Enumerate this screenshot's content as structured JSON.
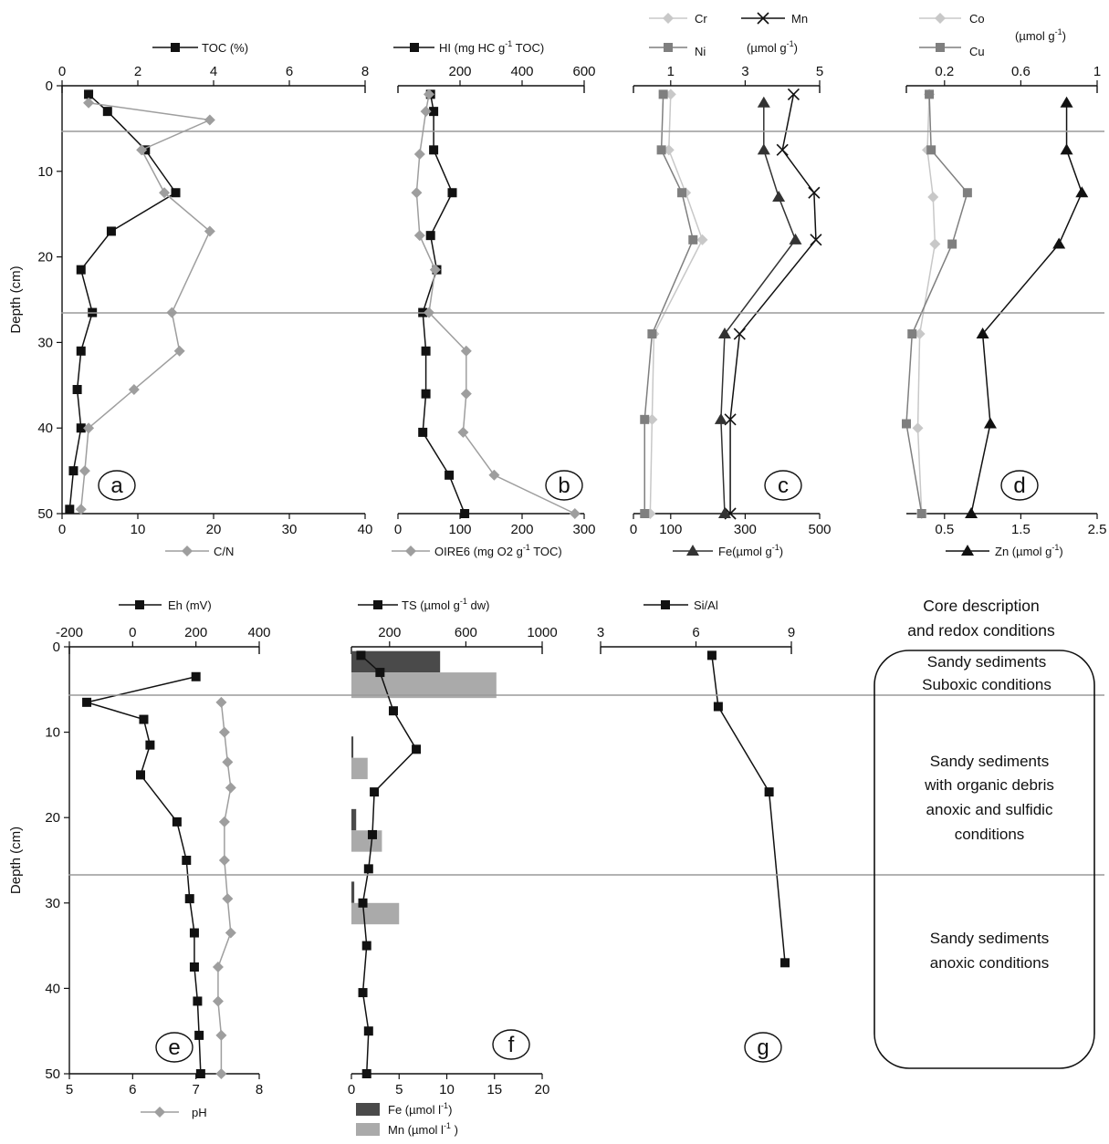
{
  "chart_data": [
    {
      "id": "a",
      "type": "line",
      "panel_label": "a",
      "ylabel": "Depth (cm)",
      "ylim": [
        0,
        50
      ],
      "yticks": [
        0,
        10,
        20,
        30,
        40,
        50
      ],
      "top_axis": {
        "label": "TOC (%)",
        "lim": [
          0,
          8
        ],
        "ticks": [
          0,
          2,
          4,
          6,
          8
        ]
      },
      "bottom_axis": {
        "label": "C/N",
        "lim": [
          0,
          40
        ],
        "ticks": [
          0,
          10,
          20,
          30,
          40
        ]
      },
      "series": [
        {
          "name": "TOC (%)",
          "axis": "top",
          "color": "#111111",
          "marker": "square",
          "points": [
            [
              0.7,
              1
            ],
            [
              1.2,
              3
            ],
            [
              2.2,
              7.5
            ],
            [
              3.0,
              12.5
            ],
            [
              1.3,
              17
            ],
            [
              0.5,
              21.5
            ],
            [
              0.8,
              26.5
            ],
            [
              0.5,
              31
            ],
            [
              0.4,
              35.5
            ],
            [
              0.5,
              40
            ],
            [
              0.3,
              45
            ],
            [
              0.2,
              49.5
            ]
          ]
        },
        {
          "name": "C/N",
          "axis": "bottom",
          "color": "#9e9e9e",
          "marker": "diamond",
          "points": [
            [
              3.5,
              2
            ],
            [
              19.5,
              4
            ],
            [
              10.5,
              7.5
            ],
            [
              13.5,
              12.5
            ],
            [
              19.5,
              17
            ],
            [
              14.5,
              26.5
            ],
            [
              15.5,
              31
            ],
            [
              9.5,
              35.5
            ],
            [
              3.5,
              40
            ],
            [
              3,
              45
            ],
            [
              2.5,
              49.5
            ]
          ]
        }
      ]
    },
    {
      "id": "b",
      "type": "line",
      "panel_label": "b",
      "ylim": [
        0,
        50
      ],
      "top_axis": {
        "label": "HI (mg HC g-1 TOC)",
        "lim": [
          0,
          600
        ],
        "ticks": [
          200,
          400,
          600
        ]
      },
      "bottom_axis": {
        "label": "OIRE6 (mg O2 g-1 TOC)",
        "lim": [
          0,
          300
        ],
        "ticks": [
          0,
          100,
          200,
          300
        ]
      },
      "series": [
        {
          "name": "HI",
          "axis": "top",
          "color": "#111111",
          "marker": "square",
          "points": [
            [
              105,
              1
            ],
            [
              115,
              3
            ],
            [
              115,
              7.5
            ],
            [
              175,
              12.5
            ],
            [
              105,
              17.5
            ],
            [
              125,
              21.5
            ],
            [
              80,
              26.5
            ],
            [
              90,
              31
            ],
            [
              90,
              36
            ],
            [
              80,
              40.5
            ],
            [
              165,
              45.5
            ],
            [
              215,
              50
            ]
          ]
        },
        {
          "name": "OIRE6",
          "axis": "bottom",
          "color": "#9e9e9e",
          "marker": "diamond",
          "points": [
            [
              50,
              1
            ],
            [
              45,
              3
            ],
            [
              35,
              8
            ],
            [
              30,
              12.5
            ],
            [
              35,
              17.5
            ],
            [
              60,
              21.5
            ],
            [
              50,
              26.5
            ],
            [
              110,
              31
            ],
            [
              110,
              36
            ],
            [
              105,
              40.5
            ],
            [
              155,
              45.5
            ],
            [
              285,
              50
            ]
          ]
        }
      ]
    },
    {
      "id": "c",
      "type": "line",
      "panel_label": "c",
      "ylim": [
        0,
        50
      ],
      "top_axis": {
        "label": "(µmol g-1)",
        "lim": [
          0,
          5
        ],
        "ticks": [
          1,
          3,
          5
        ]
      },
      "bottom_axis": {
        "label": "Fe(µmol g-1)",
        "lim": [
          0,
          500
        ],
        "ticks": [
          0,
          100,
          300,
          500
        ]
      },
      "series": [
        {
          "name": "Cr",
          "axis": "top",
          "color": "#c8c8c8",
          "marker": "diamond",
          "points": [
            [
              1.0,
              1
            ],
            [
              0.95,
              7.5
            ],
            [
              1.4,
              12.5
            ],
            [
              1.85,
              18
            ],
            [
              0.55,
              29
            ],
            [
              0.5,
              39
            ],
            [
              0.45,
              50
            ]
          ]
        },
        {
          "name": "Ni",
          "axis": "top",
          "color": "#7f7f7f",
          "marker": "square",
          "points": [
            [
              0.8,
              1
            ],
            [
              0.75,
              7.5
            ],
            [
              1.3,
              12.5
            ],
            [
              1.6,
              18
            ],
            [
              0.5,
              29
            ],
            [
              0.3,
              39
            ],
            [
              0.3,
              50
            ]
          ]
        },
        {
          "name": "Mn",
          "axis": "top",
          "color": "#111111",
          "marker": "x",
          "points": [
            [
              4.3,
              1
            ],
            [
              4.0,
              7.5
            ],
            [
              4.85,
              12.5
            ],
            [
              4.9,
              18
            ],
            [
              2.85,
              29
            ],
            [
              2.6,
              39
            ],
            [
              2.6,
              50
            ]
          ]
        },
        {
          "name": "Fe",
          "axis": "bottom",
          "color": "#333333",
          "marker": "triangle",
          "points": [
            [
              350,
              2
            ],
            [
              350,
              7.5
            ],
            [
              390,
              13
            ],
            [
              435,
              18
            ],
            [
              245,
              29
            ],
            [
              235,
              39
            ],
            [
              245,
              50
            ]
          ]
        }
      ]
    },
    {
      "id": "d",
      "type": "line",
      "panel_label": "d",
      "ylim": [
        0,
        50
      ],
      "top_axis": {
        "label": "(µmol g-1)",
        "lim": [
          0,
          1
        ],
        "ticks": [
          0.2,
          0.6,
          1
        ]
      },
      "bottom_axis": {
        "label": "Zn (µmol g-1)",
        "lim": [
          0,
          2.5
        ],
        "ticks": [
          0.5,
          1.5,
          2.5
        ]
      },
      "series": [
        {
          "name": "Co",
          "axis": "top",
          "color": "#c8c8c8",
          "marker": "diamond",
          "points": [
            [
              0.12,
              1
            ],
            [
              0.11,
              7.5
            ],
            [
              0.14,
              13
            ],
            [
              0.15,
              18.5
            ],
            [
              0.07,
              29
            ],
            [
              0.06,
              40
            ],
            [
              0.08,
              50
            ]
          ]
        },
        {
          "name": "Cu",
          "axis": "top",
          "color": "#7f7f7f",
          "marker": "square",
          "points": [
            [
              0.12,
              1
            ],
            [
              0.13,
              7.5
            ],
            [
              0.32,
              12.5
            ],
            [
              0.24,
              18.5
            ],
            [
              0.03,
              29
            ],
            [
              0.0,
              39.5
            ],
            [
              0.08,
              50
            ]
          ]
        },
        {
          "name": "Zn",
          "axis": "bottom",
          "color": "#111111",
          "marker": "triangle",
          "points": [
            [
              2.1,
              2
            ],
            [
              2.1,
              7.5
            ],
            [
              2.3,
              12.5
            ],
            [
              2.0,
              18.5
            ],
            [
              1.0,
              29
            ],
            [
              1.1,
              39.5
            ],
            [
              0.85,
              50
            ]
          ]
        }
      ]
    },
    {
      "id": "e",
      "type": "line",
      "panel_label": "e",
      "ylabel": "Depth (cm)",
      "ylim": [
        0,
        50
      ],
      "yticks": [
        0,
        10,
        20,
        30,
        40,
        50
      ],
      "top_axis": {
        "label": "Eh (mV)",
        "lim": [
          -200,
          400
        ],
        "ticks": [
          -200,
          0,
          200,
          400
        ]
      },
      "bottom_axis": {
        "label": "pH",
        "lim": [
          5,
          8
        ],
        "ticks": [
          5,
          6,
          7,
          8
        ]
      },
      "series": [
        {
          "name": "Eh (mV)",
          "axis": "top",
          "color": "#111111",
          "marker": "square",
          "points": [
            [
              200,
              3.5
            ],
            [
              -145,
              6.5
            ],
            [
              35,
              8.5
            ],
            [
              55,
              11.5
            ],
            [
              25,
              15
            ],
            [
              140,
              20.5
            ],
            [
              170,
              25
            ],
            [
              180,
              29.5
            ],
            [
              195,
              33.5
            ],
            [
              195,
              37.5
            ],
            [
              205,
              41.5
            ],
            [
              210,
              45.5
            ],
            [
              215,
              50
            ]
          ]
        },
        {
          "name": "pH",
          "axis": "bottom",
          "color": "#9e9e9e",
          "marker": "diamond",
          "points": [
            [
              7.4,
              6.5
            ],
            [
              7.45,
              10
            ],
            [
              7.5,
              13.5
            ],
            [
              7.55,
              16.5
            ],
            [
              7.45,
              20.5
            ],
            [
              7.45,
              25
            ],
            [
              7.5,
              29.5
            ],
            [
              7.55,
              33.5
            ],
            [
              7.35,
              37.5
            ],
            [
              7.35,
              41.5
            ],
            [
              7.4,
              45.5
            ],
            [
              7.4,
              50
            ]
          ]
        }
      ]
    },
    {
      "id": "f",
      "type": "bar",
      "panel_label": "f",
      "ylim": [
        0,
        50
      ],
      "top_axis": {
        "label": "TS (µmol g-1 dw)",
        "lim": [
          0,
          1000
        ],
        "ticks": [
          200,
          600,
          1000
        ]
      },
      "bottom_axis": {
        "label": "",
        "lim": [
          0,
          20
        ],
        "ticks": [
          0,
          5,
          10,
          15,
          20
        ]
      },
      "series": [
        {
          "name": "TS",
          "axis": "top",
          "color": "#111111",
          "marker": "square",
          "points": [
            [
              50,
              1
            ],
            [
              150,
              3
            ],
            [
              220,
              7.5
            ],
            [
              340,
              12
            ],
            [
              120,
              17
            ],
            [
              110,
              22
            ],
            [
              90,
              26
            ],
            [
              60,
              30
            ],
            [
              80,
              35
            ],
            [
              60,
              40.5
            ],
            [
              90,
              45
            ],
            [
              80,
              50
            ]
          ]
        }
      ],
      "bars": [
        {
          "name": "Fe (µmol l-1)",
          "color": "#4a4a4a",
          "items": [
            {
              "from": 0.5,
              "to": 3,
              "value": 9.3
            },
            {
              "from": 10.5,
              "to": 13,
              "value": 0.2
            },
            {
              "from": 19,
              "to": 21.5,
              "value": 0.5
            },
            {
              "from": 27.5,
              "to": 30,
              "value": 0.3
            }
          ]
        },
        {
          "name": "Mn (µmol l-1)",
          "color": "#aaaaaa",
          "items": [
            {
              "from": 3,
              "to": 6,
              "value": 15.2
            },
            {
              "from": 13,
              "to": 15.5,
              "value": 1.7
            },
            {
              "from": 21.5,
              "to": 24,
              "value": 3.2
            },
            {
              "from": 30,
              "to": 32.5,
              "value": 5.0
            }
          ]
        }
      ]
    },
    {
      "id": "g",
      "type": "line",
      "panel_label": "g",
      "ylim": [
        0,
        50
      ],
      "top_axis": {
        "label": "Si/Al",
        "lim": [
          3,
          9
        ],
        "ticks": [
          3,
          6,
          9
        ]
      },
      "series": [
        {
          "name": "Si/Al",
          "axis": "top",
          "color": "#111111",
          "marker": "square",
          "points": [
            [
              6.5,
              1
            ],
            [
              6.7,
              7
            ],
            [
              8.3,
              17
            ],
            [
              8.8,
              37
            ]
          ]
        }
      ]
    }
  ],
  "core_description": {
    "title_line1": "Core description",
    "title_line2": "and redox conditions",
    "zone1_line1": "Sandy sediments",
    "zone1_line2": "Suboxic conditions",
    "zone2_line1": "Sandy sediments",
    "zone2_line2": "with organic debris",
    "zone2_line3": "anoxic and sulfidic",
    "zone2_line4": "conditions",
    "zone3_line1": "Sandy sediments",
    "zone3_line2": "anoxic  conditions"
  },
  "legends": {
    "a_top": "TOC (%)",
    "a_bottom": "C/N",
    "b_top_main": "HI (mg HC g",
    "b_top_sup": "-1",
    "b_top_end": " TOC)",
    "b_bottom_main": "OIRE6 (mg O2 g",
    "b_bottom_sup": "-1",
    "b_bottom_end": " TOC)",
    "c_cr": "Cr",
    "c_ni": "Ni",
    "c_mn": "Mn",
    "c_unit_main": "(µmol g",
    "c_unit_sup": "-1",
    "c_unit_end": ")",
    "c_bottom_main": "Fe(µmol g",
    "c_bottom_sup": "-1",
    "c_bottom_end": ")",
    "d_co": "Co",
    "d_cu": "Cu",
    "d_unit_main": "(µmol g",
    "d_unit_sup": "-1",
    "d_unit_end": ")",
    "d_bottom_main": "Zn (µmol g",
    "d_bottom_sup": "-1",
    "d_bottom_end": ")",
    "e_top": "Eh (mV)",
    "e_bottom": "pH",
    "f_top_main": "TS (µmol g",
    "f_top_sup": "-1",
    "f_top_end": " dw)",
    "f_fe_main": "Fe (µmol l",
    "f_fe_sup": "-1",
    "f_fe_end": ")",
    "f_mn_main": "Mn (µmol l",
    "f_mn_sup": "-1",
    "f_mn_end": " )",
    "g_top": "Si/Al"
  }
}
